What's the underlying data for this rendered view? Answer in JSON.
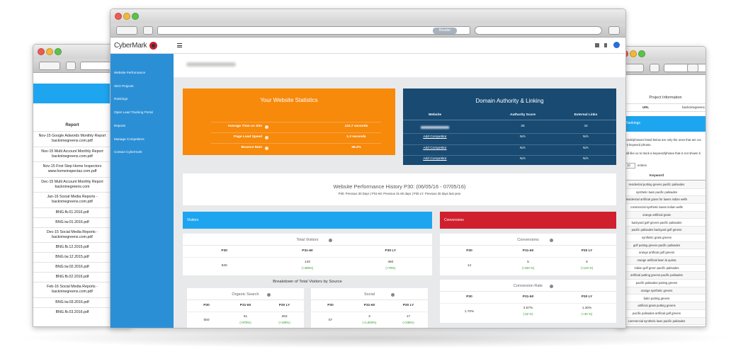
{
  "browser": {
    "reader": "Reader"
  },
  "left_window": {
    "column_header": "Report",
    "reports": [
      "Nov-15 Google Adwords Monthly Report backninegreens.com.pdf",
      "Nov-15 Multi Account Monthly Report backninegreens.com.pdf",
      "Nov-15 First Step Home Inspectors www.homeinspectaz.com.pdf",
      "Dec-15 Multi Account Monthly Report backninegreens.com",
      "Jan-16 Social Media Reports - backninegreens.com.pdf",
      "BNG.fb.01.2016.pdf",
      "BNG.tw.01.2016.pdf",
      "Dec-15 Social Media Reports - backninegreens.com.pdf",
      "BNG.fb.12.2015.pdf",
      "BNG.tw.12.2015.pdf",
      "BNG.tw.02.2016.pdf",
      "BNG.fb.02.2016.pdf",
      "Feb-16 Social Media Reports - backninegreens.com.pdf",
      "BNG.tw.03.2016.pdf",
      "BNG.fb.03.2016.pdf"
    ]
  },
  "right_window": {
    "title": "Project Information",
    "url_label": "URL",
    "url_value": "backninegreens.c...",
    "section": "Rankings",
    "notes": [
      "e keywords/phrases listed below are only the ones that are cur",
      "ck every keyword phrase.",
      "ou would like us to track a keyword/phrase that is not shown b"
    ],
    "show": "w",
    "entries_count": "10",
    "entries": "entries",
    "keyword_header": "Keyword",
    "keywords": [
      "residential putting greens pacific palisades",
      "synthetic lawn pacific palisades",
      "residential artificial grass for lawns indian wells",
      "commercial synthetic lawns indian wells",
      "orange artificial grass",
      "backyard golf greens pacific palisades",
      "pacific palisades backyard golf greens",
      "synthetic grass greens",
      "golf putting greens pacific palisades",
      "orange artificial golf greens",
      "orange artificial lawn la quinta",
      "indian golf green pacific palisades",
      "artificial putting greens pacific palisades",
      "pacific palisades putting greens",
      "orange synthetic greens",
      "batin putting greens",
      "artificial grass putting greens",
      "pacific palisades artificial golf greens",
      "commercial synthetic lawn pacific palisades"
    ]
  },
  "app": {
    "logo": "CyberMark",
    "sidebar": [
      "Website Performance",
      "SEO Projects",
      "Rankings",
      "Open Lead Tracking Portal",
      "Reports",
      "Manage Competitors",
      "Contact Cybermark"
    ]
  },
  "stats": {
    "title": "Your Website Statistics",
    "rows": [
      {
        "label": "Average Time on Site",
        "value": "122.7 seconds"
      },
      {
        "label": "Page Load Speed",
        "value": "1.3 seconds"
      },
      {
        "label": "Bounce Rate",
        "value": "46.2%"
      }
    ]
  },
  "domain": {
    "title": "Domain Authority & Linking",
    "columns": [
      "Website",
      "Authority Score",
      "External Links"
    ],
    "own_row": {
      "authority": "25",
      "links": "42"
    },
    "competitor_rows": [
      {
        "website": "Add Competitor",
        "authority": "N/A",
        "links": "N/A"
      },
      {
        "website": "Add Competitor",
        "authority": "N/A",
        "links": "N/A"
      },
      {
        "website": "Add Competitor",
        "authority": "N/A",
        "links": "N/A"
      }
    ]
  },
  "history": {
    "title": "Website Performance History P30: (06/05/16 - 07/05/16)",
    "legend": "P30: Previous 30 Days | P31-60: Previous 31-60 days | P30 LY: Previous 30 days last year"
  },
  "visitors_bar": "Visitors",
  "conversions_bar": "Conversions",
  "total_visitors": {
    "title": "Total Visitors",
    "columns": [
      "P30",
      "P31-60",
      "P30 LY"
    ],
    "values": [
      "825",
      "140",
      "460"
    ],
    "changes": [
      "(+489%)",
      "(+79%)"
    ]
  },
  "conversions": {
    "title": "Conversions",
    "columns": [
      "P30",
      "P31-60",
      "P30 LY"
    ],
    "values": [
      "14",
      "5",
      "6"
    ],
    "changes": [
      "(+180 %)",
      "(+133 %)"
    ]
  },
  "breakdown_title": "Breakdown of Total Visitors by Source",
  "organic": {
    "title": "Organic Search",
    "columns": [
      "P30",
      "P31-60",
      "P30 LY"
    ],
    "values": [
      "550",
      "51",
      "263"
    ],
    "changes": [
      "(+978%)",
      "(+109%)"
    ]
  },
  "social": {
    "title": "Social",
    "columns": [
      "P30",
      "P31-60",
      "P30 LY"
    ],
    "values": [
      "57",
      "3",
      "17"
    ],
    "changes": [
      "(+1,800%)",
      "(+235%)"
    ]
  },
  "conversion_rate": {
    "title": "Conversion Rate",
    "columns": [
      "P30",
      "P31-60",
      "P30 LY"
    ],
    "values": [
      "1.70%",
      "3.57%",
      "1.30%"
    ],
    "changes": [
      "(-52 %)",
      "(+30 %)"
    ]
  }
}
